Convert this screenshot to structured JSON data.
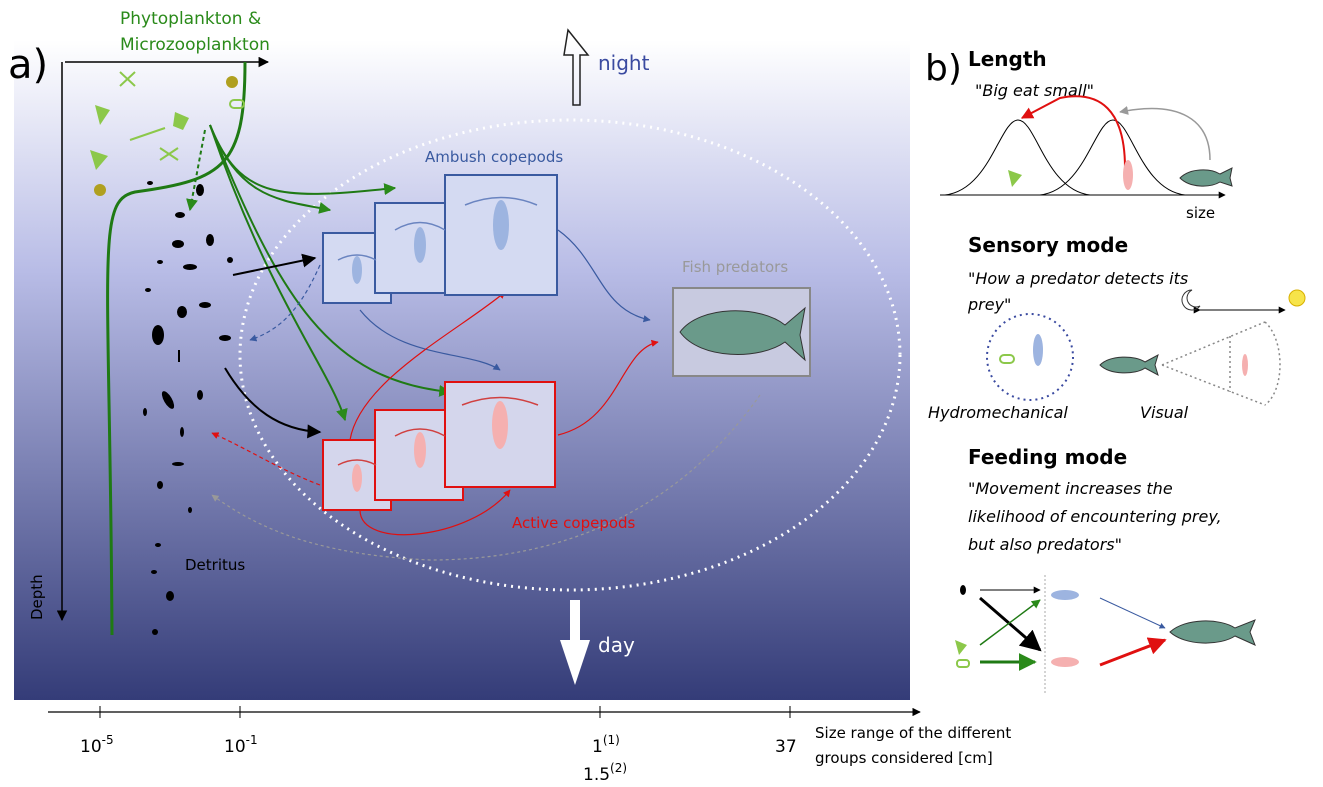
{
  "panel_a": {
    "label": "a)",
    "phyto_lines": [
      "Phytoplankton &",
      "Microzooplankton"
    ],
    "night": "night",
    "day": "day",
    "ambush": "Ambush copepods",
    "fish": "Fish predators",
    "active": "Active copepods",
    "detritus": "Detritus",
    "depth": "Depth"
  },
  "size_axis": {
    "ticks": [
      {
        "base": "10",
        "sup": "-5"
      },
      {
        "base": "10",
        "sup": "-1"
      },
      {
        "base": "1",
        "sup": "(1)"
      },
      {
        "base": "37",
        "sup": ""
      }
    ],
    "extra_tick": {
      "base": "1.5",
      "sup": "(2)"
    },
    "title_lines": [
      "Size range of the different",
      "groups considered [cm]"
    ]
  },
  "panel_b": {
    "label": "b)",
    "length": {
      "title": "Length",
      "quote": "\"Big eat small\"",
      "axis": "size"
    },
    "sensory": {
      "title": "Sensory mode",
      "quote_lines": [
        "\"How a predator detects its",
        "prey\""
      ],
      "hydro": "Hydromechanical",
      "visual": "Visual"
    },
    "feeding": {
      "title": "Feeding mode",
      "quote_lines": [
        "\"Movement increases the",
        "likelihood of encountering prey,",
        "but also predators\""
      ]
    }
  }
}
